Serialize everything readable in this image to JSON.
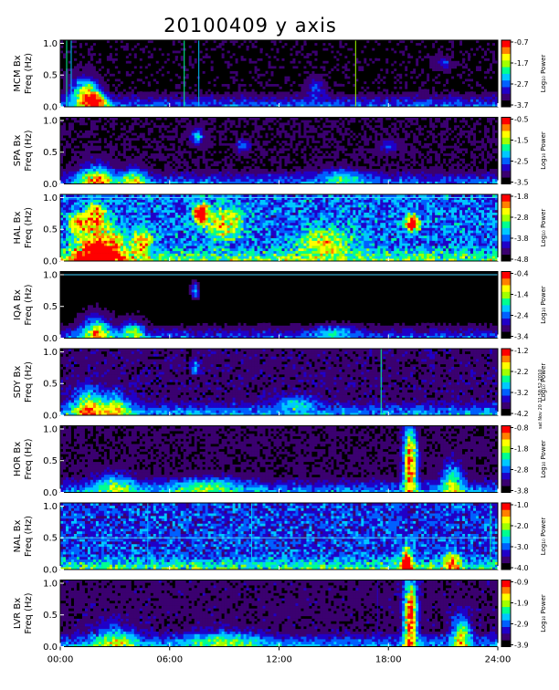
{
  "title": "20100409  y  axis",
  "stamp": "sat Nov 20 21:58:52 2010",
  "chart_data": {
    "type": "heatmap",
    "xlabel": "",
    "x_ticks": [
      "00:00",
      "06:00",
      "12:00",
      "18:00",
      "24:00"
    ],
    "x_range_hours": [
      0,
      24
    ],
    "ylabel": "Freq (Hz)",
    "y_ticks": [
      "0.0",
      "0.5",
      "1.0"
    ],
    "y_range": [
      0,
      1.05
    ],
    "colorbar_label": "Log₁₀ Power",
    "colormap": [
      "#000000",
      "#3b0070",
      "#2000c8",
      "#0060ff",
      "#00c8ff",
      "#00ff90",
      "#a0ff00",
      "#ffff00",
      "#ff8000",
      "#ff0000"
    ],
    "panels": [
      {
        "station": "MCM Bx",
        "cb_ticks": [
          "-0.7",
          "-1.7",
          "-2.7",
          "-3.7"
        ],
        "background_level": 0.08,
        "events": [
          [
            1.3,
            0.2,
            0.7,
            0.25,
            0.55
          ],
          [
            1.8,
            0.1,
            0.5,
            0.2,
            0.45
          ],
          [
            2.2,
            0.05,
            0.5,
            0.15,
            0.35
          ],
          [
            14.0,
            0.3,
            0.5,
            0.15,
            0.25
          ],
          [
            21.0,
            0.7,
            0.5,
            0.1,
            0.2
          ]
        ],
        "lines_hours": [
          [
            0.35,
            "#00ff90"
          ],
          [
            0.6,
            "#00c8ff"
          ],
          [
            6.8,
            "#00ff90"
          ],
          [
            7.6,
            "#00c8ff"
          ],
          [
            16.2,
            "#a0ff00"
          ]
        ],
        "hline": null
      },
      {
        "station": "SPA Bx",
        "cb_ticks": [
          "-0.5",
          "-1.5",
          "-2.5",
          "-3.5"
        ],
        "background_level": 0.1,
        "events": [
          [
            2.0,
            0.05,
            0.9,
            0.25,
            0.6
          ],
          [
            4.0,
            0.05,
            0.6,
            0.2,
            0.45
          ],
          [
            7.5,
            0.75,
            0.3,
            0.12,
            0.4
          ],
          [
            10.0,
            0.6,
            0.4,
            0.1,
            0.25
          ],
          [
            15.5,
            0.1,
            1.2,
            0.15,
            0.25
          ],
          [
            18.0,
            0.6,
            0.5,
            0.1,
            0.2
          ]
        ],
        "lines_hours": [],
        "hline": null
      },
      {
        "station": "HAL Bx",
        "cb_ticks": [
          "-1.8",
          "-2.8",
          "-3.8",
          "-4.8"
        ],
        "background_level": 0.35,
        "events": [
          [
            2.2,
            0.15,
            1.3,
            0.3,
            0.85
          ],
          [
            2.0,
            0.7,
            0.6,
            0.2,
            0.55
          ],
          [
            7.7,
            0.75,
            0.35,
            0.15,
            0.9
          ],
          [
            9.0,
            0.6,
            1.0,
            0.25,
            0.45
          ],
          [
            1.0,
            0.6,
            0.5,
            0.15,
            0.5
          ],
          [
            19.3,
            0.6,
            0.35,
            0.12,
            0.85
          ],
          [
            14.5,
            0.3,
            1.5,
            0.2,
            0.4
          ],
          [
            4.5,
            0.3,
            0.5,
            0.2,
            0.5
          ]
        ],
        "lines_hours": [],
        "hline": 1.0
      },
      {
        "station": "IQA Bx",
        "cb_ticks": [
          "-0.4",
          "-1.4",
          "-2.4",
          "-3.4"
        ],
        "background_level": 0.06,
        "events": [
          [
            2.0,
            0.1,
            0.8,
            0.25,
            0.55
          ],
          [
            4.0,
            0.1,
            0.6,
            0.2,
            0.4
          ],
          [
            7.4,
            0.75,
            0.2,
            0.12,
            0.35
          ],
          [
            15.0,
            0.1,
            1.0,
            0.12,
            0.25
          ]
        ],
        "lines_hours": [],
        "hline": 1.0
      },
      {
        "station": "SDY Bx",
        "cb_ticks": [
          "-1.2",
          "-2.2",
          "-3.2",
          "-4.2"
        ],
        "background_level": 0.15,
        "events": [
          [
            1.5,
            0.1,
            0.8,
            0.3,
            0.55
          ],
          [
            3.0,
            0.1,
            0.8,
            0.25,
            0.45
          ],
          [
            7.4,
            0.75,
            0.2,
            0.1,
            0.35
          ],
          [
            13.0,
            0.2,
            1.0,
            0.12,
            0.3
          ]
        ],
        "lines_hours": [
          [
            17.6,
            "#00ff90"
          ]
        ],
        "hline": null
      },
      {
        "station": "HOR Bx",
        "cb_ticks": [
          "-0.8",
          "-1.8",
          "-2.8",
          "-3.8"
        ],
        "background_level": 0.12,
        "events": [
          [
            19.2,
            0.45,
            0.35,
            0.55,
            0.85
          ],
          [
            21.5,
            0.15,
            0.6,
            0.3,
            0.45
          ],
          [
            3.0,
            0.1,
            1.2,
            0.2,
            0.35
          ],
          [
            8.0,
            0.1,
            2.0,
            0.15,
            0.3
          ]
        ],
        "lines_hours": [],
        "hline": null
      },
      {
        "station": "NAL Bx",
        "cb_ticks": [
          "-1.0",
          "-2.0",
          "-3.0",
          "-4.0"
        ],
        "background_level": 0.3,
        "events": [
          [
            19.0,
            0.1,
            0.3,
            0.25,
            0.75
          ],
          [
            21.5,
            0.1,
            0.4,
            0.2,
            0.45
          ]
        ],
        "lines_hours": [
          [
            4.8,
            "#00c8ff"
          ],
          [
            10.5,
            "#00c8ff"
          ],
          [
            23.6,
            "#00ff90"
          ]
        ],
        "hline": 0.5
      },
      {
        "station": "LVR Bx",
        "cb_ticks": [
          "-0.9",
          "-1.9",
          "-2.9",
          "-3.9"
        ],
        "background_level": 0.14,
        "events": [
          [
            19.2,
            0.45,
            0.35,
            0.6,
            0.85
          ],
          [
            22.0,
            0.2,
            0.5,
            0.3,
            0.5
          ],
          [
            3.0,
            0.1,
            1.2,
            0.25,
            0.35
          ],
          [
            9.0,
            0.1,
            2.0,
            0.15,
            0.3
          ]
        ],
        "lines_hours": [
          [
            17.4,
            "#2000c8"
          ]
        ],
        "hline": null
      }
    ]
  }
}
